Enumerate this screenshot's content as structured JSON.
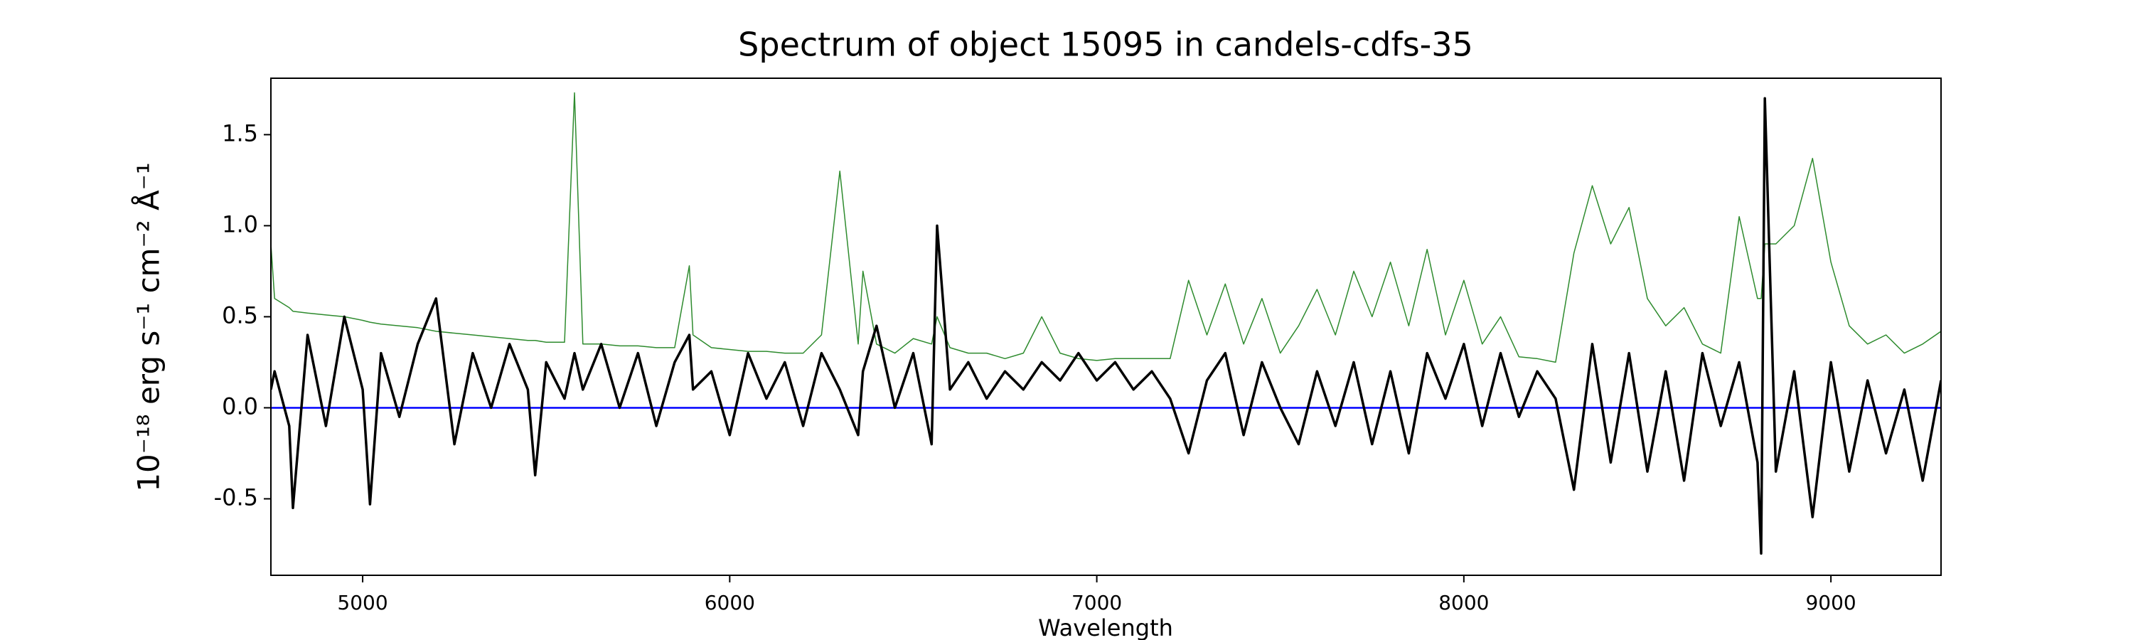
{
  "chart_data": {
    "type": "line",
    "title": "Spectrum of object 15095 in candels-cdfs-35",
    "xlabel": "Wavelength",
    "ylabel": "10⁻¹⁸ erg s⁻¹ cm⁻² Å⁻¹",
    "xlim": [
      4750,
      9300
    ],
    "ylim": [
      -0.92,
      1.81
    ],
    "xticks": [
      5000,
      6000,
      7000,
      8000,
      9000
    ],
    "yticks": [
      -0.5,
      {
        "value": 0,
        "label": "0.0"
      },
      0.5,
      {
        "value": 1,
        "label": "1.0"
      },
      1.5
    ],
    "grid": false,
    "hlines": [
      {
        "y": 0,
        "color": "#0000ff",
        "linewidth": 2.5
      }
    ],
    "x": [
      4750,
      4760,
      4800,
      4810,
      4850,
      4900,
      4950,
      5000,
      5020,
      5050,
      5100,
      5150,
      5200,
      5250,
      5300,
      5350,
      5400,
      5450,
      5470,
      5500,
      5550,
      5577,
      5600,
      5650,
      5700,
      5750,
      5800,
      5850,
      5890,
      5900,
      5950,
      6000,
      6050,
      6100,
      6150,
      6200,
      6250,
      6300,
      6350,
      6363,
      6400,
      6450,
      6500,
      6550,
      6565,
      6600,
      6650,
      6700,
      6750,
      6800,
      6850,
      6900,
      6950,
      7000,
      7050,
      7100,
      7150,
      7200,
      7250,
      7300,
      7350,
      7400,
      7450,
      7500,
      7550,
      7600,
      7650,
      7700,
      7750,
      7800,
      7850,
      7900,
      7950,
      8000,
      8050,
      8100,
      8150,
      8200,
      8250,
      8300,
      8350,
      8400,
      8450,
      8500,
      8550,
      8600,
      8650,
      8700,
      8750,
      8800,
      8810,
      8820,
      8850,
      8900,
      8950,
      9000,
      9050,
      9100,
      9150,
      9200,
      9250,
      9300
    ],
    "series": [
      {
        "color": "#2e8b2e",
        "linewidth": 1.5,
        "values": [
          0.9,
          0.6,
          0.55,
          0.53,
          0.52,
          0.51,
          0.5,
          0.48,
          0.47,
          0.46,
          0.45,
          0.44,
          0.42,
          0.41,
          0.4,
          0.39,
          0.38,
          0.37,
          0.37,
          0.36,
          0.36,
          1.73,
          0.35,
          0.35,
          0.34,
          0.34,
          0.33,
          0.33,
          0.78,
          0.4,
          0.33,
          0.32,
          0.31,
          0.31,
          0.3,
          0.3,
          0.4,
          1.3,
          0.35,
          0.75,
          0.35,
          0.3,
          0.38,
          0.35,
          0.5,
          0.33,
          0.3,
          0.3,
          0.27,
          0.3,
          0.5,
          0.3,
          0.27,
          0.26,
          0.27,
          0.27,
          0.27,
          0.27,
          0.7,
          0.4,
          0.68,
          0.35,
          0.6,
          0.3,
          0.45,
          0.65,
          0.4,
          0.75,
          0.5,
          0.8,
          0.45,
          0.87,
          0.4,
          0.7,
          0.35,
          0.5,
          0.28,
          0.27,
          0.25,
          0.85,
          1.22,
          0.9,
          1.1,
          0.6,
          0.45,
          0.55,
          0.35,
          0.3,
          1.05,
          0.6,
          0.6,
          0.9,
          0.9,
          1.0,
          1.37,
          0.8,
          0.45,
          0.35,
          0.4,
          0.3,
          0.35,
          0.42
        ]
      },
      {
        "color": "#000000",
        "linewidth": 3.5,
        "values": [
          0.1,
          0.2,
          -0.1,
          -0.55,
          0.4,
          -0.1,
          0.5,
          0.1,
          -0.53,
          0.3,
          -0.05,
          0.35,
          0.6,
          -0.2,
          0.3,
          0.0,
          0.35,
          0.1,
          -0.37,
          0.25,
          0.05,
          0.3,
          0.1,
          0.35,
          0.0,
          0.3,
          -0.1,
          0.25,
          0.4,
          0.1,
          0.2,
          -0.15,
          0.3,
          0.05,
          0.25,
          -0.1,
          0.3,
          0.1,
          -0.15,
          0.2,
          0.45,
          0.0,
          0.3,
          -0.2,
          1.0,
          0.1,
          0.25,
          0.05,
          0.2,
          0.1,
          0.25,
          0.15,
          0.3,
          0.15,
          0.25,
          0.1,
          0.2,
          0.05,
          -0.25,
          0.15,
          0.3,
          -0.15,
          0.25,
          0.0,
          -0.2,
          0.2,
          -0.1,
          0.25,
          -0.2,
          0.2,
          -0.25,
          0.3,
          0.05,
          0.35,
          -0.1,
          0.3,
          -0.05,
          0.2,
          0.05,
          -0.45,
          0.35,
          -0.3,
          0.3,
          -0.35,
          0.2,
          -0.4,
          0.3,
          -0.1,
          0.25,
          -0.3,
          -0.8,
          1.7,
          -0.35,
          0.2,
          -0.6,
          0.25,
          -0.35,
          0.15,
          -0.25,
          0.1,
          -0.4,
          0.15
        ]
      }
    ]
  }
}
